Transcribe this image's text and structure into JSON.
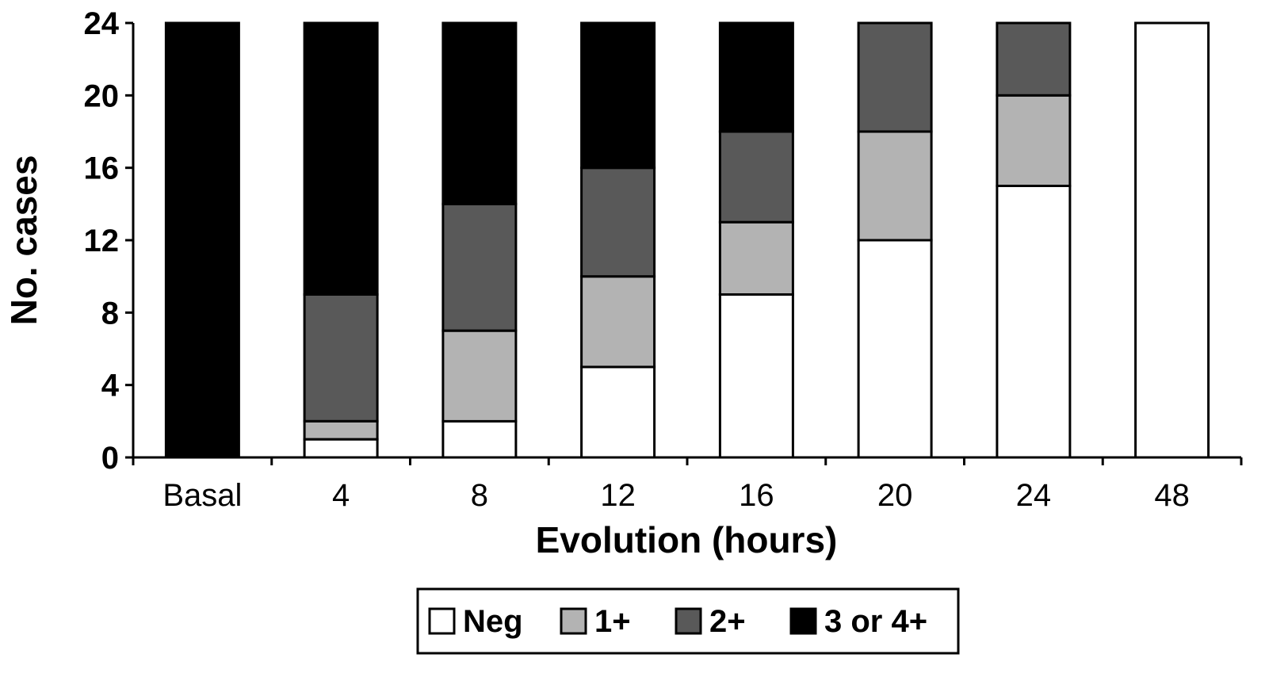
{
  "chart_data": {
    "type": "bar",
    "stacked": true,
    "categories": [
      "Basal",
      "4",
      "8",
      "12",
      "16",
      "20",
      "24",
      "48"
    ],
    "series": [
      {
        "name": "Neg",
        "color": "#ffffff",
        "values": [
          0,
          1,
          2,
          5,
          9,
          12,
          15,
          24
        ]
      },
      {
        "name": "1+",
        "color": "#b3b3b3",
        "values": [
          0,
          1,
          5,
          5,
          4,
          6,
          5,
          0
        ]
      },
      {
        "name": "2+",
        "color": "#595959",
        "values": [
          0,
          7,
          7,
          6,
          5,
          6,
          4,
          0
        ]
      },
      {
        "name": "3 or 4+",
        "color": "#000000",
        "values": [
          24,
          15,
          10,
          8,
          6,
          0,
          0,
          0
        ]
      }
    ],
    "xlabel": "Evolution (hours)",
    "ylabel": "No. cases",
    "ylim": [
      0,
      24
    ],
    "yticks": [
      "0",
      "4",
      "8",
      "12",
      "16",
      "20",
      "24"
    ],
    "grid": false,
    "legend_position": "bottom"
  }
}
